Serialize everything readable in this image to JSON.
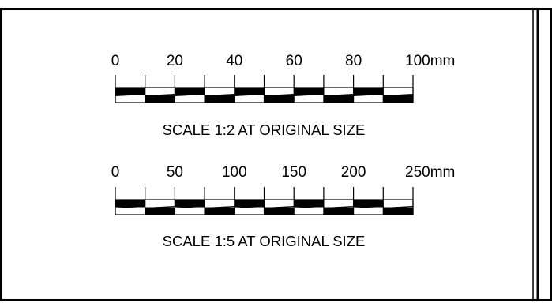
{
  "colors": {
    "ink": "#000000",
    "paper": "#ffffff"
  },
  "scale_bars": [
    {
      "ratio": "1:2",
      "tick_labels": [
        "0",
        "20",
        "40",
        "60",
        "80",
        "100mm"
      ],
      "caption": "SCALE 1:2  AT ORIGINAL SIZE",
      "max_value": 100,
      "unit": "mm",
      "divisions": 10
    },
    {
      "ratio": "1:5",
      "tick_labels": [
        "0",
        "50",
        "100",
        "150",
        "200",
        "250mm"
      ],
      "caption": "SCALE 1:5  AT ORIGINAL SIZE",
      "max_value": 250,
      "unit": "mm",
      "divisions": 10
    }
  ]
}
